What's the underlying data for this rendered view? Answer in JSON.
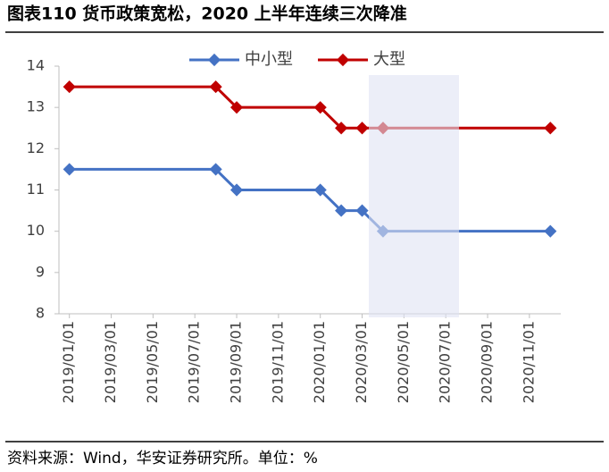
{
  "chart_data": {
    "type": "line",
    "title": "图表110  货币政策宽松，2020 上半年连续三次降准",
    "source": "资料来源：Wind，华安证券研究所。单位：%",
    "x": [
      "2019/01/01",
      "2019/08/01",
      "2019/09/01",
      "2020/01/01",
      "2020/02/01",
      "2020/03/01",
      "2020/04/01",
      "2020/12/01"
    ],
    "series": [
      {
        "name": "中小型",
        "color": "#4472c4",
        "values": [
          11.5,
          11.5,
          11,
          11,
          10.5,
          10.5,
          10,
          10
        ]
      },
      {
        "name": "大型",
        "color": "#c00000",
        "values": [
          13.5,
          13.5,
          13,
          13,
          12.5,
          12.5,
          12.5,
          12.5
        ]
      }
    ],
    "xlim": [
      "2019/01/01",
      "2020/12/01"
    ],
    "xticks": [
      "2019/01/01",
      "2019/03/01",
      "2019/05/01",
      "2019/07/01",
      "2019/09/01",
      "2019/11/01",
      "2020/01/01",
      "2020/03/01",
      "2020/05/01",
      "2020/07/01",
      "2020/09/01",
      "2020/11/01"
    ],
    "ylim": [
      8,
      14
    ],
    "yticks": [
      8,
      9,
      10,
      11,
      12,
      13,
      14
    ],
    "grid": false,
    "legend": "top"
  }
}
